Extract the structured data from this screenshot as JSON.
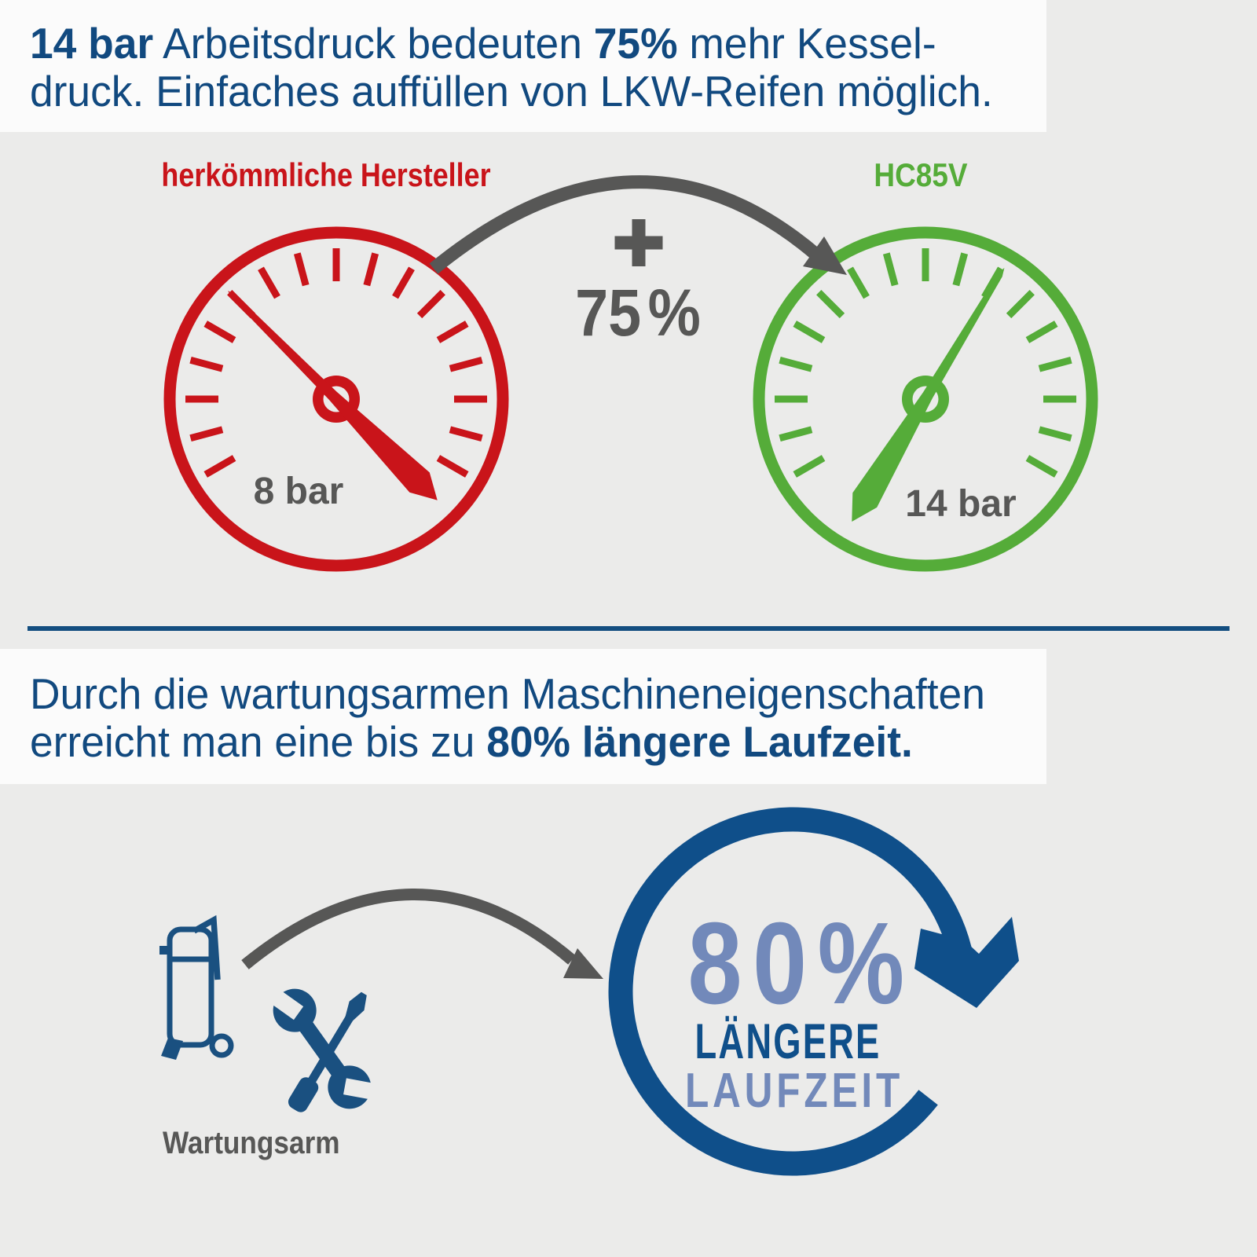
{
  "colors": {
    "background": "#ebebea",
    "panel": "#fbfbfb",
    "navy": "#11497f",
    "red": "#c9141a",
    "green": "#55ac39",
    "gray": "#575756",
    "blue": "#0f4f8a",
    "icon_blue": "#1a5080",
    "periwinkle": "#7289ba",
    "divider": "#134e80"
  },
  "banner_top": {
    "bold1": "14 bar",
    "text1": " Arbeitsdruck bedeuten ",
    "bold2": "75%",
    "text2": " mehr Kessel-",
    "line2": "druck. Einfaches auffüllen von LKW-Reifen möglich."
  },
  "comparison": {
    "left_gauge": {
      "label": "herkömmliche Hersteller",
      "value": "8 bar",
      "needle_deg": -45,
      "color": "#c9141a"
    },
    "right_gauge": {
      "label": "HC85V",
      "value": "14 bar",
      "needle_deg": 31,
      "color": "#55ac39"
    },
    "plus": "+",
    "percent": "75 %",
    "gauge_style": {
      "ticks": 17,
      "tick_start_deg": -120,
      "tick_step_deg": 15
    }
  },
  "banner_mid": {
    "line1": "Durch die wartungsarmen Maschineneigenschaften",
    "line2_pre": "erreicht man eine bis zu ",
    "line2_bold": "80% längere Laufzeit."
  },
  "bottom": {
    "icon_label": "Wartungsarm",
    "big_percent": "80%",
    "line1": "LÄNGERE",
    "line2": "LAUFZEIT"
  }
}
